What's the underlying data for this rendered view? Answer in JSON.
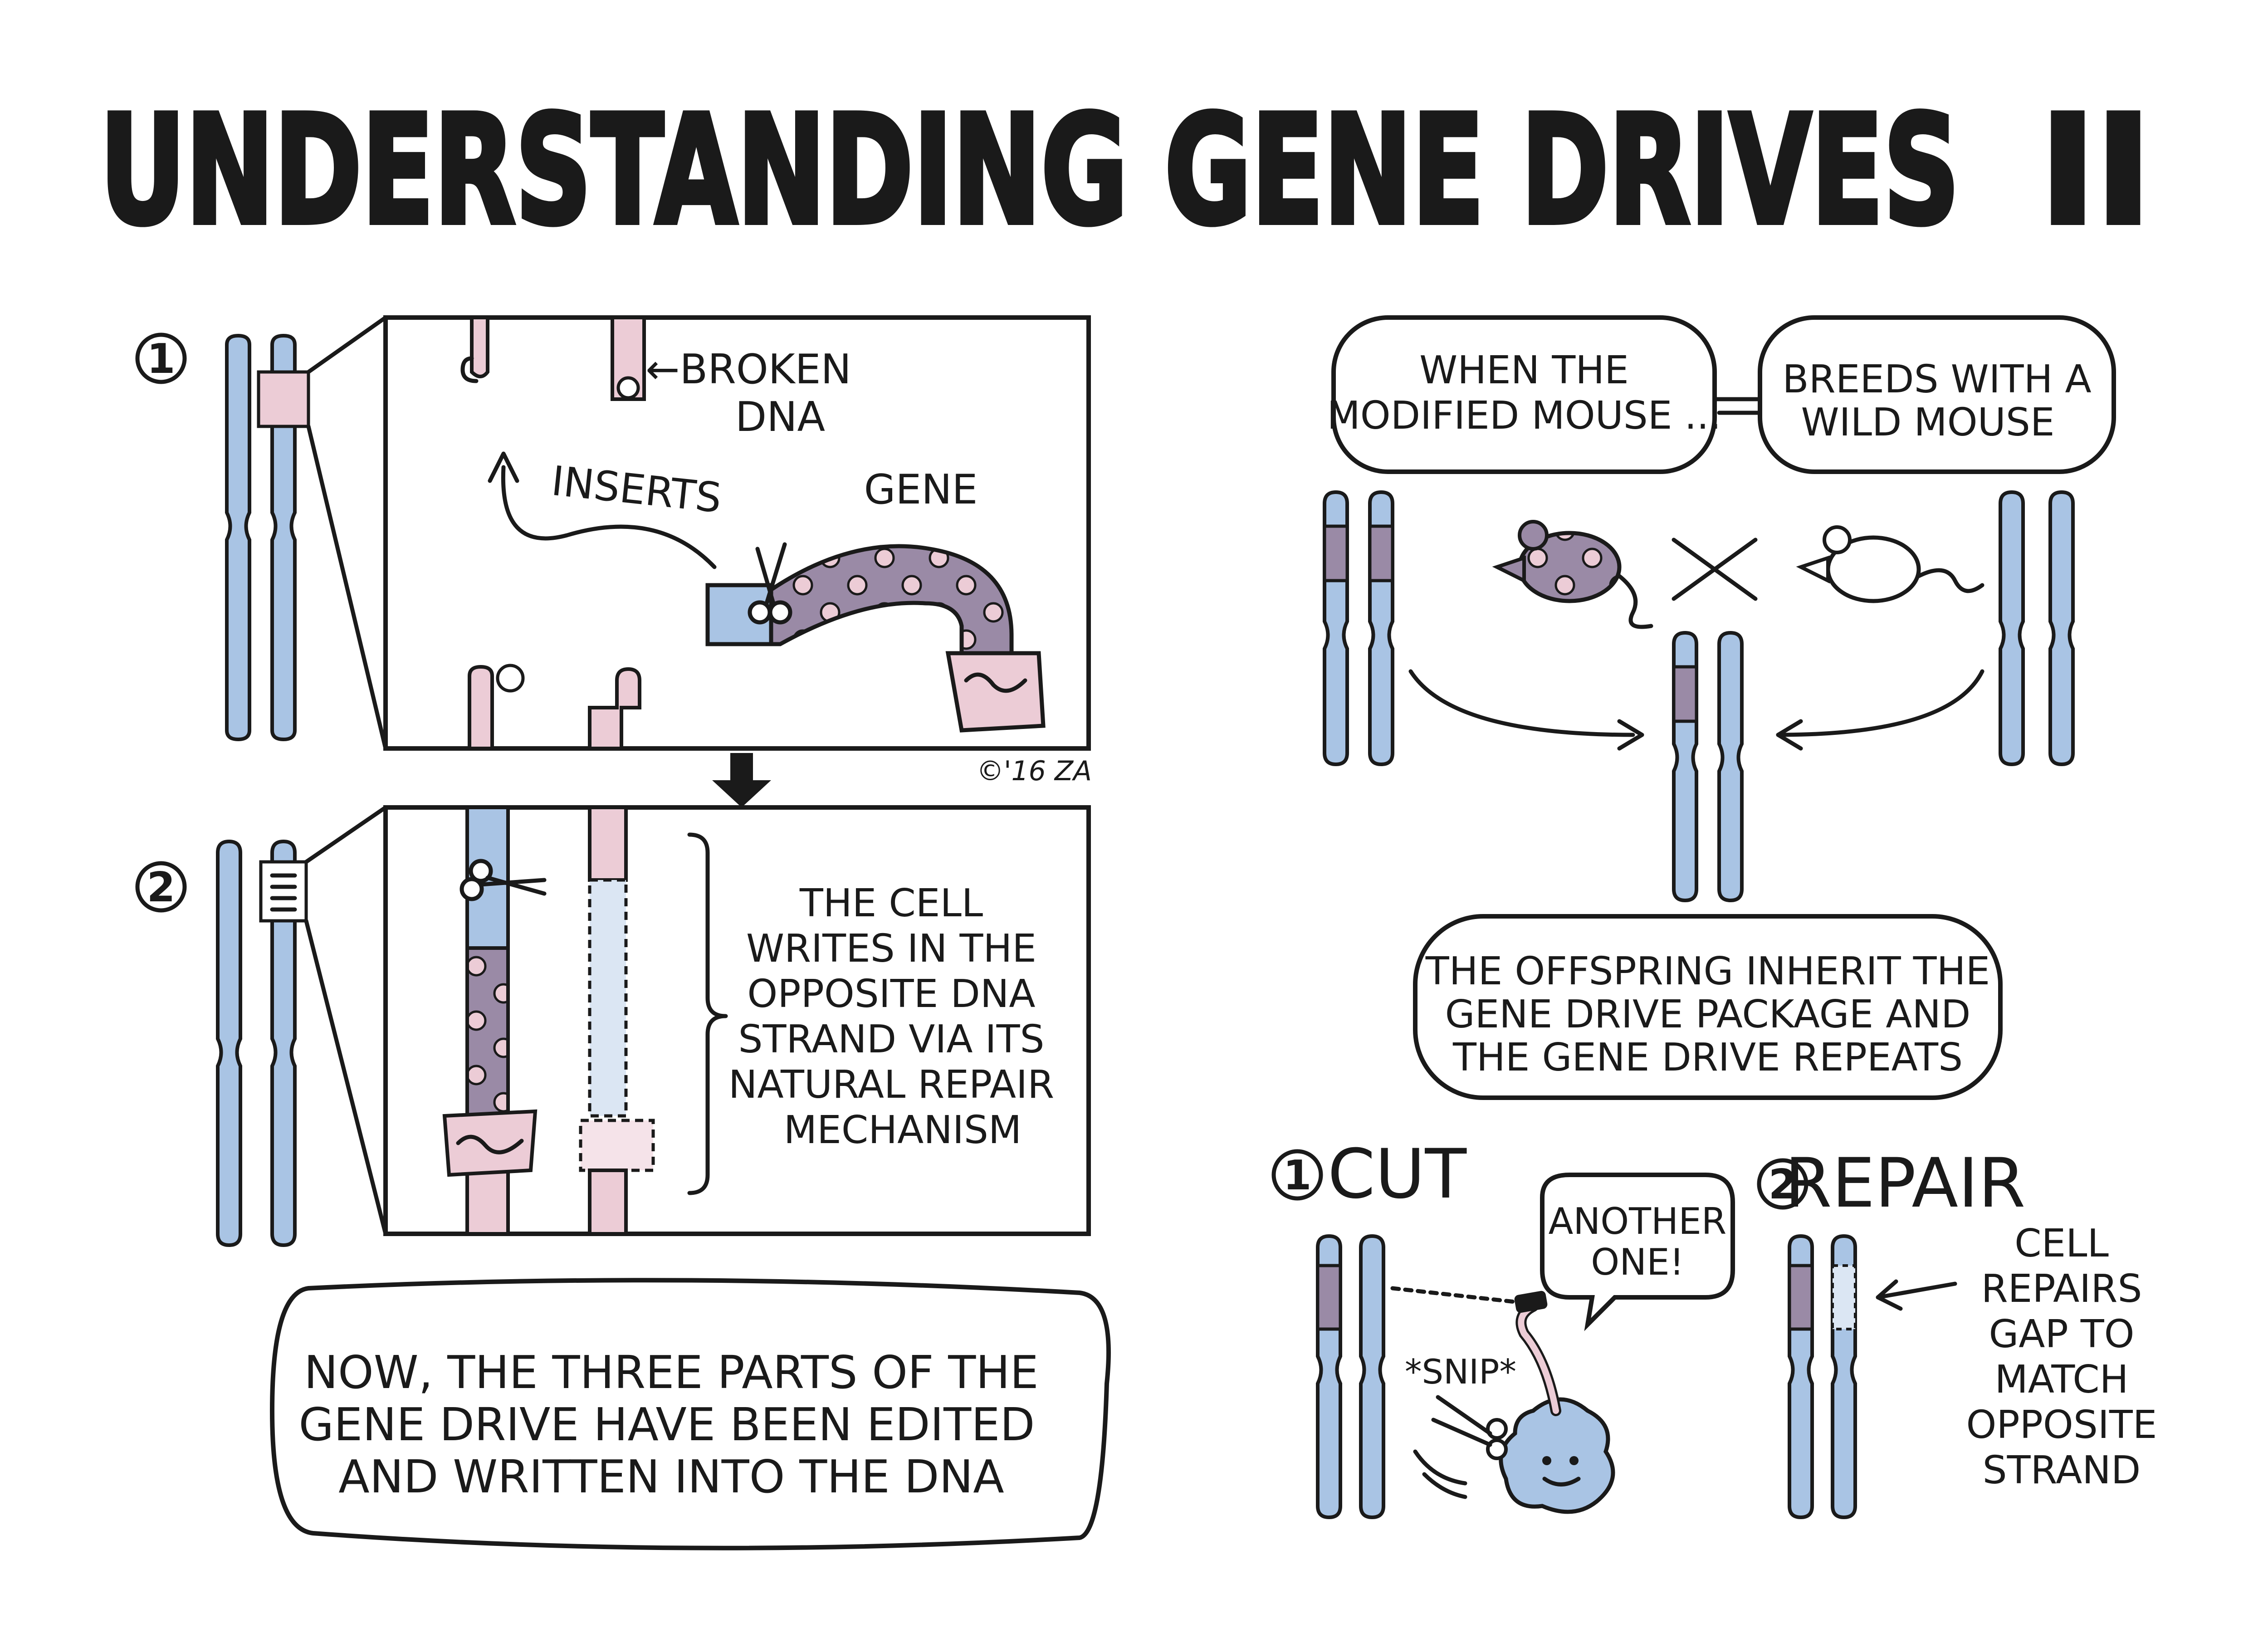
{
  "title": "UNDERSTANDING GENE DRIVES",
  "title_numeral": "II",
  "colors": {
    "blue": "#a9c4e4",
    "pink": "#ecccd6",
    "purple": "#9a8aa6",
    "ink": "#1a1a1a"
  },
  "step_numbers": {
    "one": "1",
    "two": "2"
  },
  "panel1": {
    "broken": "←BROKEN",
    "dna": "DNA",
    "inserts": "INSERTS",
    "gene": "GENE"
  },
  "panel2": {
    "lines": [
      "THE CELL",
      "WRITES IN THE",
      "OPPOSITE DNA",
      "STRAND VIA ITS",
      "NATURAL REPAIR",
      "MECHANISM"
    ]
  },
  "signature": "©'16 ZA",
  "bottom_left": {
    "lines": [
      "NOW, THE THREE PARTS OF THE",
      "GENE DRIVE HAVE BEEN EDITED",
      "AND WRITTEN INTO THE DNA"
    ]
  },
  "right": {
    "bubble_a": [
      "WHEN THE",
      "MODIFIED MOUSE ..."
    ],
    "bubble_b": [
      "BREEDS WITH A",
      "WILD MOUSE"
    ],
    "offspring": [
      "THE OFFSPRING INHERIT THE",
      "GENE DRIVE PACKAGE AND",
      "THE GENE DRIVE REPEATS"
    ],
    "cut_label": "CUT",
    "repair_label": "REPAIR",
    "another_one": [
      "ANOTHER",
      "ONE!"
    ],
    "snip": "*SNIP*",
    "cell_repairs": [
      "CELL",
      "REPAIRS",
      "GAP TO",
      "MATCH",
      "OPPOSITE",
      "STRAND"
    ]
  }
}
